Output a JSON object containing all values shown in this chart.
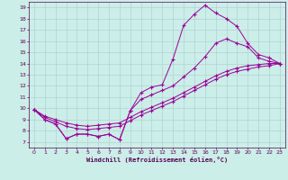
{
  "xlabel": "Windchill (Refroidissement éolien,°C)",
  "bg_color": "#cceee8",
  "grid_color": "#aacccc",
  "line_color": "#990099",
  "xlim": [
    -0.5,
    23.5
  ],
  "ylim": [
    6.5,
    19.5
  ],
  "xticks": [
    0,
    1,
    2,
    3,
    4,
    5,
    6,
    7,
    8,
    9,
    10,
    11,
    12,
    13,
    14,
    15,
    16,
    17,
    18,
    19,
    20,
    21,
    22,
    23
  ],
  "yticks": [
    7,
    8,
    9,
    10,
    11,
    12,
    13,
    14,
    15,
    16,
    17,
    18,
    19
  ],
  "s1_x": [
    0,
    1,
    2,
    3,
    4,
    5,
    6,
    7,
    8,
    9,
    10,
    11,
    12,
    13,
    14,
    15,
    16,
    17,
    18,
    19,
    20,
    21,
    22,
    23
  ],
  "s1_y": [
    9.9,
    9.0,
    8.6,
    7.3,
    7.7,
    7.7,
    7.5,
    7.7,
    7.2,
    9.8,
    11.4,
    11.9,
    12.1,
    14.4,
    17.4,
    18.4,
    19.2,
    18.5,
    18.0,
    17.3,
    15.8,
    14.8,
    14.5,
    14.0
  ],
  "s2_x": [
    0,
    1,
    2,
    3,
    4,
    5,
    6,
    7,
    8,
    9,
    10,
    11,
    12,
    13,
    14,
    15,
    16,
    17,
    18,
    19,
    20,
    21,
    22,
    23
  ],
  "s2_y": [
    9.9,
    9.0,
    8.6,
    7.3,
    7.7,
    7.7,
    7.5,
    7.7,
    7.2,
    9.8,
    10.8,
    11.2,
    11.6,
    12.0,
    12.8,
    13.6,
    14.6,
    15.8,
    16.2,
    15.8,
    15.5,
    14.5,
    14.2,
    14.0
  ],
  "s3_x": [
    0,
    1,
    2,
    3,
    4,
    5,
    6,
    7,
    8,
    9,
    10,
    11,
    12,
    13,
    14,
    15,
    16,
    17,
    18,
    19,
    20,
    21,
    22,
    23
  ],
  "s3_y": [
    9.9,
    9.3,
    9.0,
    8.7,
    8.5,
    8.4,
    8.5,
    8.6,
    8.7,
    9.2,
    9.7,
    10.1,
    10.5,
    10.9,
    11.4,
    11.9,
    12.4,
    12.9,
    13.3,
    13.6,
    13.8,
    13.9,
    14.0,
    14.0
  ],
  "s4_x": [
    0,
    1,
    2,
    3,
    4,
    5,
    6,
    7,
    8,
    9,
    10,
    11,
    12,
    13,
    14,
    15,
    16,
    17,
    18,
    19,
    20,
    21,
    22,
    23
  ],
  "s4_y": [
    9.9,
    9.2,
    8.8,
    8.4,
    8.2,
    8.1,
    8.2,
    8.3,
    8.4,
    8.9,
    9.4,
    9.8,
    10.2,
    10.6,
    11.1,
    11.6,
    12.1,
    12.6,
    13.0,
    13.3,
    13.5,
    13.7,
    13.8,
    14.0
  ]
}
